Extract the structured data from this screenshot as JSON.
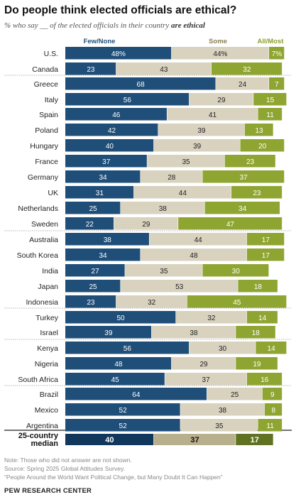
{
  "title": "Do people think elected officials are ethical?",
  "subtitle": {
    "prefix": "% who say __ of the elected officials in their country ",
    "emphasis": "are ethical"
  },
  "colors": {
    "few": "#1f4e79",
    "some": "#d8d2bf",
    "most": "#8fa532",
    "most_label": "#8a9d2a",
    "median_few": "#12375c",
    "median_some": "#b8af8c",
    "median_most": "#5f7222"
  },
  "chart_data": {
    "type": "bar",
    "orientation": "horizontal",
    "stacked": true,
    "legend": [
      "Few/None",
      "Some",
      "All/Most"
    ],
    "series": [
      {
        "name": "Few/None",
        "values": [
          48,
          23,
          68,
          56,
          46,
          42,
          40,
          37,
          34,
          31,
          25,
          22,
          38,
          34,
          27,
          25,
          23,
          50,
          39,
          56,
          48,
          45,
          64,
          52,
          52,
          40
        ]
      },
      {
        "name": "Some",
        "values": [
          44,
          43,
          24,
          29,
          41,
          39,
          39,
          35,
          28,
          44,
          38,
          29,
          44,
          48,
          35,
          53,
          32,
          32,
          38,
          30,
          29,
          37,
          25,
          38,
          35,
          37
        ]
      },
      {
        "name": "All/Most",
        "values": [
          7,
          32,
          7,
          15,
          11,
          13,
          20,
          23,
          37,
          23,
          34,
          47,
          17,
          17,
          30,
          18,
          45,
          14,
          18,
          14,
          19,
          16,
          9,
          8,
          11,
          17
        ]
      }
    ],
    "labels": [
      [
        "48%",
        "44%",
        "7%"
      ],
      [
        "23",
        "43",
        "32"
      ],
      [
        "68",
        "24",
        "7"
      ],
      [
        "56",
        "29",
        "15"
      ],
      [
        "46",
        "41",
        "11"
      ],
      [
        "42",
        "39",
        "13"
      ],
      [
        "40",
        "39",
        "20"
      ],
      [
        "37",
        "35",
        "23"
      ],
      [
        "34",
        "28",
        "37"
      ],
      [
        "31",
        "44",
        "23"
      ],
      [
        "25",
        "38",
        "34"
      ],
      [
        "22",
        "29",
        "47"
      ],
      [
        "38",
        "44",
        "17"
      ],
      [
        "34",
        "48",
        "17"
      ],
      [
        "27",
        "35",
        "30"
      ],
      [
        "25",
        "53",
        "18"
      ],
      [
        "23",
        "32",
        "45"
      ],
      [
        "50",
        "32",
        "14"
      ],
      [
        "39",
        "38",
        "18"
      ],
      [
        "56",
        "30",
        "14"
      ],
      [
        "48",
        "29",
        "19"
      ],
      [
        "45",
        "37",
        "16"
      ],
      [
        "64",
        "25",
        "9"
      ],
      [
        "52",
        "38",
        "8"
      ],
      [
        "52",
        "35",
        "11"
      ],
      [
        "40",
        "37",
        "17"
      ]
    ],
    "categories": [
      "U.S.",
      "Canada",
      "Greece",
      "Italy",
      "Spain",
      "Poland",
      "Hungary",
      "France",
      "Germany",
      "UK",
      "Netherlands",
      "Sweden",
      "Australia",
      "South Korea",
      "India",
      "Japan",
      "Indonesia",
      "Turkey",
      "Israel",
      "Kenya",
      "Nigeria",
      "South Africa",
      "Brazil",
      "Mexico",
      "Argentina",
      "25-country median"
    ],
    "median_label_lines": [
      "25-country",
      "median"
    ]
  },
  "notes": [
    "Note: Those who did not answer are not shown.",
    "Source: Spring 2025 Global Attitudes Survey.",
    "“People Around the World Want Political Change, but Many Doubt It Can Happen”"
  ],
  "source_org": "PEW RESEARCH CENTER"
}
